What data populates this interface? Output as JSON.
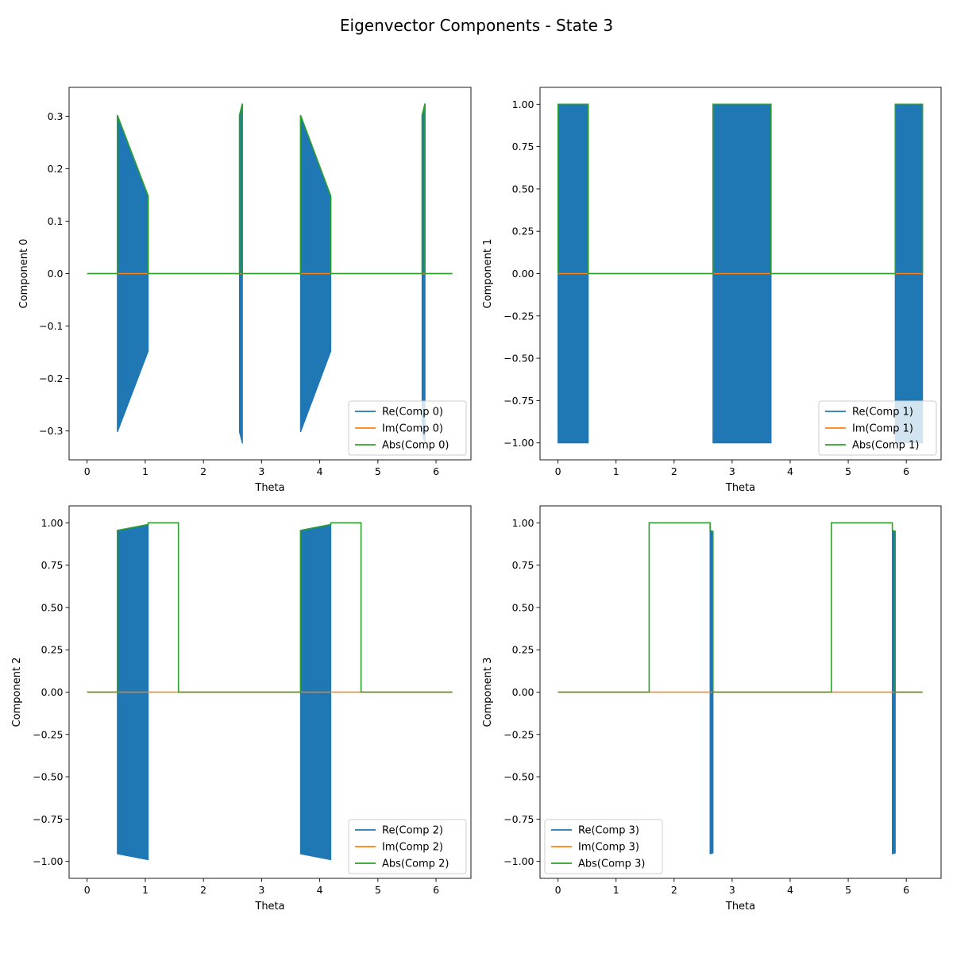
{
  "figure": {
    "title": "Eigenvector Components - State 3"
  },
  "colors": {
    "re": "#1f77b4",
    "im": "#ff7f0e",
    "abs": "#2ca02c"
  },
  "chart_data": [
    {
      "type": "line",
      "title": "",
      "xlabel": "Theta",
      "ylabel": "Component 0",
      "xlim": [
        -0.31,
        6.6
      ],
      "ylim": [
        -0.355,
        0.355
      ],
      "xticks": [
        0,
        1,
        2,
        3,
        4,
        5,
        6
      ],
      "yticks": [
        -0.3,
        -0.2,
        -0.1,
        0.0,
        0.1,
        0.2,
        0.3
      ],
      "ytick_labels": [
        "−0.3",
        "−0.2",
        "−0.1",
        "0.0",
        "0.1",
        "0.2",
        "0.3"
      ],
      "legend": {
        "loc": "lower right",
        "entries": [
          "Re(Comp 0)",
          "Im(Comp 0)",
          "Abs(Comp 0)"
        ]
      },
      "series": [
        {
          "name": "Re(Comp 0)",
          "kind": "band_segments",
          "segments": [
            {
              "x0": 0.52,
              "x1": 1.05,
              "y_start": 0.302,
              "y_end": 0.148
            },
            {
              "x0": 2.62,
              "x1": 2.67,
              "y_start": 0.302,
              "y_end": 0.324
            },
            {
              "x0": 3.67,
              "x1": 4.19,
              "y_start": 0.302,
              "y_end": 0.148
            },
            {
              "x0": 5.76,
              "x1": 5.81,
              "y_start": 0.302,
              "y_end": 0.324
            }
          ]
        },
        {
          "name": "Im(Comp 0)",
          "x": [
            0,
            6.28
          ],
          "y": [
            0,
            0
          ]
        },
        {
          "name": "Abs(Comp 0)",
          "kind": "envelope",
          "segments": [
            {
              "x0": 0.52,
              "x1": 1.05,
              "y_start": 0.302,
              "y_end": 0.148
            },
            {
              "x0": 2.62,
              "x1": 2.67,
              "y_start": 0.302,
              "y_end": 0.324
            },
            {
              "x0": 3.67,
              "x1": 4.19,
              "y_start": 0.302,
              "y_end": 0.148
            },
            {
              "x0": 5.76,
              "x1": 5.81,
              "y_start": 0.302,
              "y_end": 0.324
            }
          ]
        }
      ]
    },
    {
      "type": "line",
      "title": "",
      "xlabel": "Theta",
      "ylabel": "Component 1",
      "xlim": [
        -0.31,
        6.6
      ],
      "ylim": [
        -1.1,
        1.1
      ],
      "xticks": [
        0,
        1,
        2,
        3,
        4,
        5,
        6
      ],
      "yticks": [
        -1.0,
        -0.75,
        -0.5,
        -0.25,
        0.0,
        0.25,
        0.5,
        0.75,
        1.0
      ],
      "ytick_labels": [
        "−1.00",
        "−0.75",
        "−0.50",
        "−0.25",
        "0.00",
        "0.25",
        "0.50",
        "0.75",
        "1.00"
      ],
      "legend": {
        "loc": "lower right",
        "entries": [
          "Re(Comp 1)",
          "Im(Comp 1)",
          "Abs(Comp 1)"
        ]
      },
      "series": [
        {
          "name": "Re(Comp 1)",
          "kind": "band_segments",
          "segments": [
            {
              "x0": 0.0,
              "x1": 0.52,
              "y_start": 1.0,
              "y_end": 1.0
            },
            {
              "x0": 2.67,
              "x1": 3.67,
              "y_start": 1.0,
              "y_end": 1.0
            },
            {
              "x0": 5.81,
              "x1": 6.28,
              "y_start": 1.0,
              "y_end": 1.0
            }
          ]
        },
        {
          "name": "Im(Comp 1)",
          "x": [
            0,
            6.28
          ],
          "y": [
            0,
            0
          ]
        },
        {
          "name": "Abs(Comp 1)",
          "kind": "envelope",
          "segments": [
            {
              "x0": 0.0,
              "x1": 0.52,
              "y_start": 1.0,
              "y_end": 1.0
            },
            {
              "x0": 2.67,
              "x1": 3.67,
              "y_start": 1.0,
              "y_end": 1.0
            },
            {
              "x0": 5.81,
              "x1": 6.28,
              "y_start": 1.0,
              "y_end": 1.0
            }
          ]
        }
      ]
    },
    {
      "type": "line",
      "title": "",
      "xlabel": "Theta",
      "ylabel": "Component 2",
      "xlim": [
        -0.31,
        6.6
      ],
      "ylim": [
        -1.1,
        1.1
      ],
      "xticks": [
        0,
        1,
        2,
        3,
        4,
        5,
        6
      ],
      "yticks": [
        -1.0,
        -0.75,
        -0.5,
        -0.25,
        0.0,
        0.25,
        0.5,
        0.75,
        1.0
      ],
      "ytick_labels": [
        "−1.00",
        "−0.75",
        "−0.50",
        "−0.25",
        "0.00",
        "0.25",
        "0.50",
        "0.75",
        "1.00"
      ],
      "legend": {
        "loc": "lower right",
        "entries": [
          "Re(Comp 2)",
          "Im(Comp 2)",
          "Abs(Comp 2)"
        ]
      },
      "series": [
        {
          "name": "Re(Comp 2)",
          "kind": "band_segments",
          "segments": [
            {
              "x0": 0.52,
              "x1": 1.05,
              "y_start": 0.955,
              "y_end": 0.99
            },
            {
              "x0": 3.67,
              "x1": 4.19,
              "y_start": 0.955,
              "y_end": 0.99
            }
          ]
        },
        {
          "name": "Im(Comp 2)",
          "x": [
            0,
            6.28
          ],
          "y": [
            0,
            0
          ]
        },
        {
          "name": "Abs(Comp 2)",
          "kind": "envelope",
          "segments": [
            {
              "x0": 0.52,
              "x1": 1.05,
              "y_start": 0.955,
              "y_end": 0.99
            },
            {
              "x0": 1.05,
              "x1": 1.57,
              "y_start": 1.0,
              "y_end": 1.0
            },
            {
              "x0": 3.67,
              "x1": 4.19,
              "y_start": 0.955,
              "y_end": 0.99
            },
            {
              "x0": 4.19,
              "x1": 4.71,
              "y_start": 1.0,
              "y_end": 1.0
            }
          ]
        }
      ]
    },
    {
      "type": "line",
      "title": "",
      "xlabel": "Theta",
      "ylabel": "Component 3",
      "xlim": [
        -0.31,
        6.6
      ],
      "ylim": [
        -1.1,
        1.1
      ],
      "xticks": [
        0,
        1,
        2,
        3,
        4,
        5,
        6
      ],
      "yticks": [
        -1.0,
        -0.75,
        -0.5,
        -0.25,
        0.0,
        0.25,
        0.5,
        0.75,
        1.0
      ],
      "ytick_labels": [
        "−1.00",
        "−0.75",
        "−0.50",
        "−0.25",
        "0.00",
        "0.25",
        "0.50",
        "0.75",
        "1.00"
      ],
      "legend": {
        "loc": "lower left",
        "entries": [
          "Re(Comp 3)",
          "Im(Comp 3)",
          "Abs(Comp 3)"
        ]
      },
      "series": [
        {
          "name": "Re(Comp 3)",
          "kind": "band_segments",
          "segments": [
            {
              "x0": 2.62,
              "x1": 2.67,
              "y_start": 0.955,
              "y_end": 0.95
            },
            {
              "x0": 5.76,
              "x1": 5.81,
              "y_start": 0.955,
              "y_end": 0.95
            }
          ]
        },
        {
          "name": "Im(Comp 3)",
          "x": [
            0,
            6.28
          ],
          "y": [
            0,
            0
          ]
        },
        {
          "name": "Abs(Comp 3)",
          "kind": "envelope",
          "segments": [
            {
              "x0": 1.57,
              "x1": 2.62,
              "y_start": 1.0,
              "y_end": 1.0
            },
            {
              "x0": 2.62,
              "x1": 2.67,
              "y_start": 0.955,
              "y_end": 0.95
            },
            {
              "x0": 4.71,
              "x1": 5.76,
              "y_start": 1.0,
              "y_end": 1.0
            },
            {
              "x0": 5.76,
              "x1": 5.81,
              "y_start": 0.955,
              "y_end": 0.95
            }
          ]
        }
      ]
    }
  ]
}
